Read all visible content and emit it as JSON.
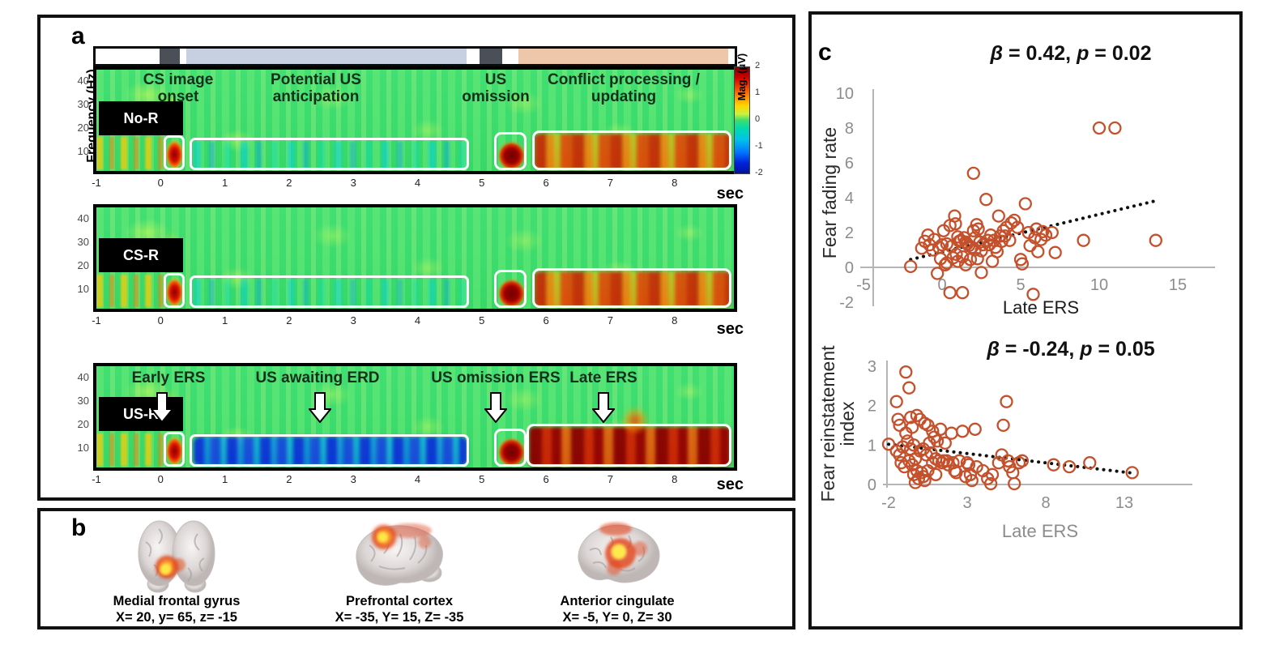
{
  "panels": {
    "a": "a",
    "b": "b",
    "c": "c"
  },
  "panel_a": {
    "freq_axis_label": "Frequency (Hz)",
    "freq_ticks": [
      "40",
      "30",
      "20",
      "10"
    ],
    "time_ticks": [
      "-1",
      "0",
      "1",
      "2",
      "3",
      "4",
      "5",
      "6",
      "7",
      "8"
    ],
    "sec_label": "sec",
    "colorbar": {
      "ticks": [
        "2",
        "1",
        "0",
        "-1",
        "-2"
      ],
      "label": "Mag. (μV)"
    },
    "conditions": [
      "No-R",
      "CS-R",
      "US-R"
    ],
    "top_annotations": [
      "CS image onset",
      "Potential US anticipation",
      "US omission",
      "Conflict processing / updating"
    ],
    "bottom_annotations": [
      "Early ERS",
      "US awaiting ERD",
      "US omission ERS",
      "Late ERS"
    ]
  },
  "panel_b": {
    "brains": [
      {
        "name": "Medial frontal gyrus",
        "coords": "X= 20, y= 65, z= -15"
      },
      {
        "name": "Prefrontal cortex",
        "coords": "X= -35, Y= 15, Z= -35"
      },
      {
        "name": "Anterior cingulate",
        "coords": "X= -5, Y= 0, Z= 30"
      }
    ]
  },
  "chart_data": [
    {
      "type": "scatter",
      "title_parts": {
        "beta_sym": "β",
        "beta_rest": " = 0.42, ",
        "p_sym": "p",
        "p_rest": " = 0.02"
      },
      "xlabel": "Late ERS",
      "ylabel_lines": [
        "Fear fading rate"
      ],
      "xticks": [
        -5,
        0,
        5,
        10,
        15
      ],
      "yticks": [
        10,
        8,
        6,
        4,
        2,
        0,
        -2
      ],
      "xlim": [
        -5,
        15
      ],
      "ylim": [
        -2,
        10
      ],
      "legend": "none",
      "grid": false,
      "trend": [
        [
          -2,
          0.45
        ],
        [
          13.5,
          3.8
        ]
      ],
      "points": [
        [
          -2.0,
          0.05
        ],
        [
          -1.3,
          1.1
        ],
        [
          -1.1,
          1.5
        ],
        [
          -0.9,
          1.85
        ],
        [
          -0.8,
          1.3
        ],
        [
          -0.6,
          1.0
        ],
        [
          -0.5,
          1.6
        ],
        [
          -0.3,
          -0.35
        ],
        [
          -0.2,
          1.15
        ],
        [
          -0.1,
          0.5
        ],
        [
          0.0,
          1.3
        ],
        [
          0.1,
          2.1
        ],
        [
          0.2,
          0.15
        ],
        [
          0.3,
          1.35
        ],
        [
          0.3,
          0.25
        ],
        [
          0.5,
          -1.45
        ],
        [
          0.5,
          2.4
        ],
        [
          0.6,
          1.2
        ],
        [
          0.7,
          0.55
        ],
        [
          0.8,
          2.95
        ],
        [
          0.85,
          2.5
        ],
        [
          0.9,
          0.75
        ],
        [
          1.0,
          1.75
        ],
        [
          1.0,
          0.35
        ],
        [
          1.1,
          1.5
        ],
        [
          1.2,
          1.55
        ],
        [
          1.3,
          -1.45
        ],
        [
          1.3,
          0.6
        ],
        [
          1.4,
          1.7
        ],
        [
          1.5,
          1.45
        ],
        [
          1.5,
          0.15
        ],
        [
          1.6,
          1.35
        ],
        [
          1.7,
          1.25
        ],
        [
          1.8,
          0.45
        ],
        [
          1.9,
          1.15
        ],
        [
          2.0,
          5.4
        ],
        [
          2.0,
          2.1
        ],
        [
          2.1,
          1.7
        ],
        [
          2.1,
          1.0
        ],
        [
          2.2,
          2.45
        ],
        [
          2.25,
          0.5
        ],
        [
          2.3,
          2.2
        ],
        [
          2.4,
          1.45
        ],
        [
          2.5,
          0.95
        ],
        [
          2.5,
          -0.3
        ],
        [
          2.6,
          1.3
        ],
        [
          2.8,
          3.9
        ],
        [
          2.9,
          1.55
        ],
        [
          3.0,
          1.3
        ],
        [
          3.1,
          1.85
        ],
        [
          3.2,
          0.35
        ],
        [
          3.3,
          1.55
        ],
        [
          3.4,
          1.15
        ],
        [
          3.5,
          0.9
        ],
        [
          3.6,
          2.95
        ],
        [
          3.7,
          1.8
        ],
        [
          3.8,
          1.5
        ],
        [
          3.9,
          2.1
        ],
        [
          4.0,
          1.8
        ],
        [
          4.1,
          2.3
        ],
        [
          4.3,
          1.55
        ],
        [
          4.4,
          2.55
        ],
        [
          4.6,
          2.7
        ],
        [
          4.8,
          2.3
        ],
        [
          5.0,
          0.45
        ],
        [
          5.1,
          0.2
        ],
        [
          5.3,
          3.65
        ],
        [
          5.5,
          2.0
        ],
        [
          5.6,
          1.25
        ],
        [
          5.8,
          -1.55
        ],
        [
          5.9,
          1.7
        ],
        [
          6.0,
          2.2
        ],
        [
          6.1,
          0.9
        ],
        [
          6.3,
          1.6
        ],
        [
          6.4,
          2.05
        ],
        [
          6.6,
          1.85
        ],
        [
          7.0,
          2.0
        ],
        [
          7.2,
          0.85
        ],
        [
          9.0,
          1.55
        ],
        [
          10.0,
          8.0
        ],
        [
          11.0,
          8.0
        ],
        [
          13.6,
          1.55
        ]
      ]
    },
    {
      "type": "scatter",
      "title_parts": {
        "beta_sym": "β",
        "beta_rest": " = -0.24, ",
        "p_sym": "p",
        "p_rest": " = 0.05"
      },
      "xlabel": "Late ERS",
      "ylabel_lines": [
        "Fear reinstatement",
        "index"
      ],
      "xticks": [
        -2,
        3,
        8,
        13
      ],
      "yticks": [
        3,
        2,
        1,
        0
      ],
      "xlim": [
        -2,
        15
      ],
      "ylim": [
        0,
        3
      ],
      "legend": "none",
      "grid": false,
      "trend": [
        [
          -2,
          1.02
        ],
        [
          13.5,
          0.29
        ]
      ],
      "points": [
        [
          -2.0,
          1.02
        ],
        [
          -1.5,
          2.1
        ],
        [
          -1.4,
          1.65
        ],
        [
          -1.3,
          1.5
        ],
        [
          -1.5,
          0.85
        ],
        [
          -1.3,
          0.75
        ],
        [
          -1.2,
          0.55
        ],
        [
          -1.1,
          0.95
        ],
        [
          -1.0,
          0.45
        ],
        [
          -0.9,
          2.85
        ],
        [
          -0.9,
          1.3
        ],
        [
          -0.8,
          1.1
        ],
        [
          -0.7,
          2.45
        ],
        [
          -0.7,
          0.6
        ],
        [
          -0.6,
          1.7
        ],
        [
          -0.6,
          0.9
        ],
        [
          -0.5,
          1.45
        ],
        [
          -0.5,
          0.5
        ],
        [
          -0.4,
          0.25
        ],
        [
          -0.4,
          1.0
        ],
        [
          -0.3,
          0.05
        ],
        [
          -0.3,
          0.65
        ],
        [
          -0.2,
          1.75
        ],
        [
          -0.2,
          0.35
        ],
        [
          -0.1,
          0.15
        ],
        [
          0.0,
          1.65
        ],
        [
          0.0,
          0.85
        ],
        [
          0.1,
          0.3
        ],
        [
          0.2,
          0.9
        ],
        [
          0.2,
          0.2
        ],
        [
          0.3,
          1.55
        ],
        [
          0.3,
          0.1
        ],
        [
          0.4,
          0.75
        ],
        [
          0.5,
          1.5
        ],
        [
          0.5,
          0.35
        ],
        [
          0.6,
          1.05
        ],
        [
          0.7,
          0.8
        ],
        [
          0.8,
          1.35
        ],
        [
          0.8,
          0.55
        ],
        [
          0.9,
          1.2
        ],
        [
          1.0,
          0.65
        ],
        [
          1.0,
          0.25
        ],
        [
          1.1,
          1.1
        ],
        [
          1.2,
          0.6
        ],
        [
          1.3,
          1.4
        ],
        [
          1.4,
          0.55
        ],
        [
          1.5,
          0.6
        ],
        [
          1.6,
          1.05
        ],
        [
          1.7,
          0.6
        ],
        [
          1.8,
          0.5
        ],
        [
          2.0,
          1.3
        ],
        [
          2.1,
          0.55
        ],
        [
          2.2,
          0.35
        ],
        [
          2.3,
          0.3
        ],
        [
          2.5,
          0.6
        ],
        [
          2.7,
          1.35
        ],
        [
          2.9,
          0.2
        ],
        [
          3.0,
          0.55
        ],
        [
          3.1,
          0.5
        ],
        [
          3.2,
          0.25
        ],
        [
          3.3,
          0.1
        ],
        [
          3.5,
          1.4
        ],
        [
          3.6,
          0.45
        ],
        [
          4.0,
          0.35
        ],
        [
          4.3,
          0.15
        ],
        [
          4.5,
          0.02
        ],
        [
          4.6,
          0.25
        ],
        [
          5.0,
          0.55
        ],
        [
          5.2,
          0.75
        ],
        [
          5.3,
          1.5
        ],
        [
          5.5,
          2.1
        ],
        [
          5.6,
          0.6
        ],
        [
          5.7,
          0.45
        ],
        [
          5.9,
          0.3
        ],
        [
          6.0,
          0.02
        ],
        [
          6.3,
          0.55
        ],
        [
          6.5,
          0.6
        ],
        [
          8.5,
          0.5
        ],
        [
          9.5,
          0.45
        ],
        [
          10.8,
          0.55
        ],
        [
          13.5,
          0.3
        ]
      ]
    }
  ],
  "colors": {
    "point_stroke": "#c4502c",
    "timeline_lavender": "#c7d0e0",
    "timeline_peach": "#eec6a9",
    "timeline_dark": "#4b5058",
    "spectrogram_green": "#3ddd6e"
  }
}
